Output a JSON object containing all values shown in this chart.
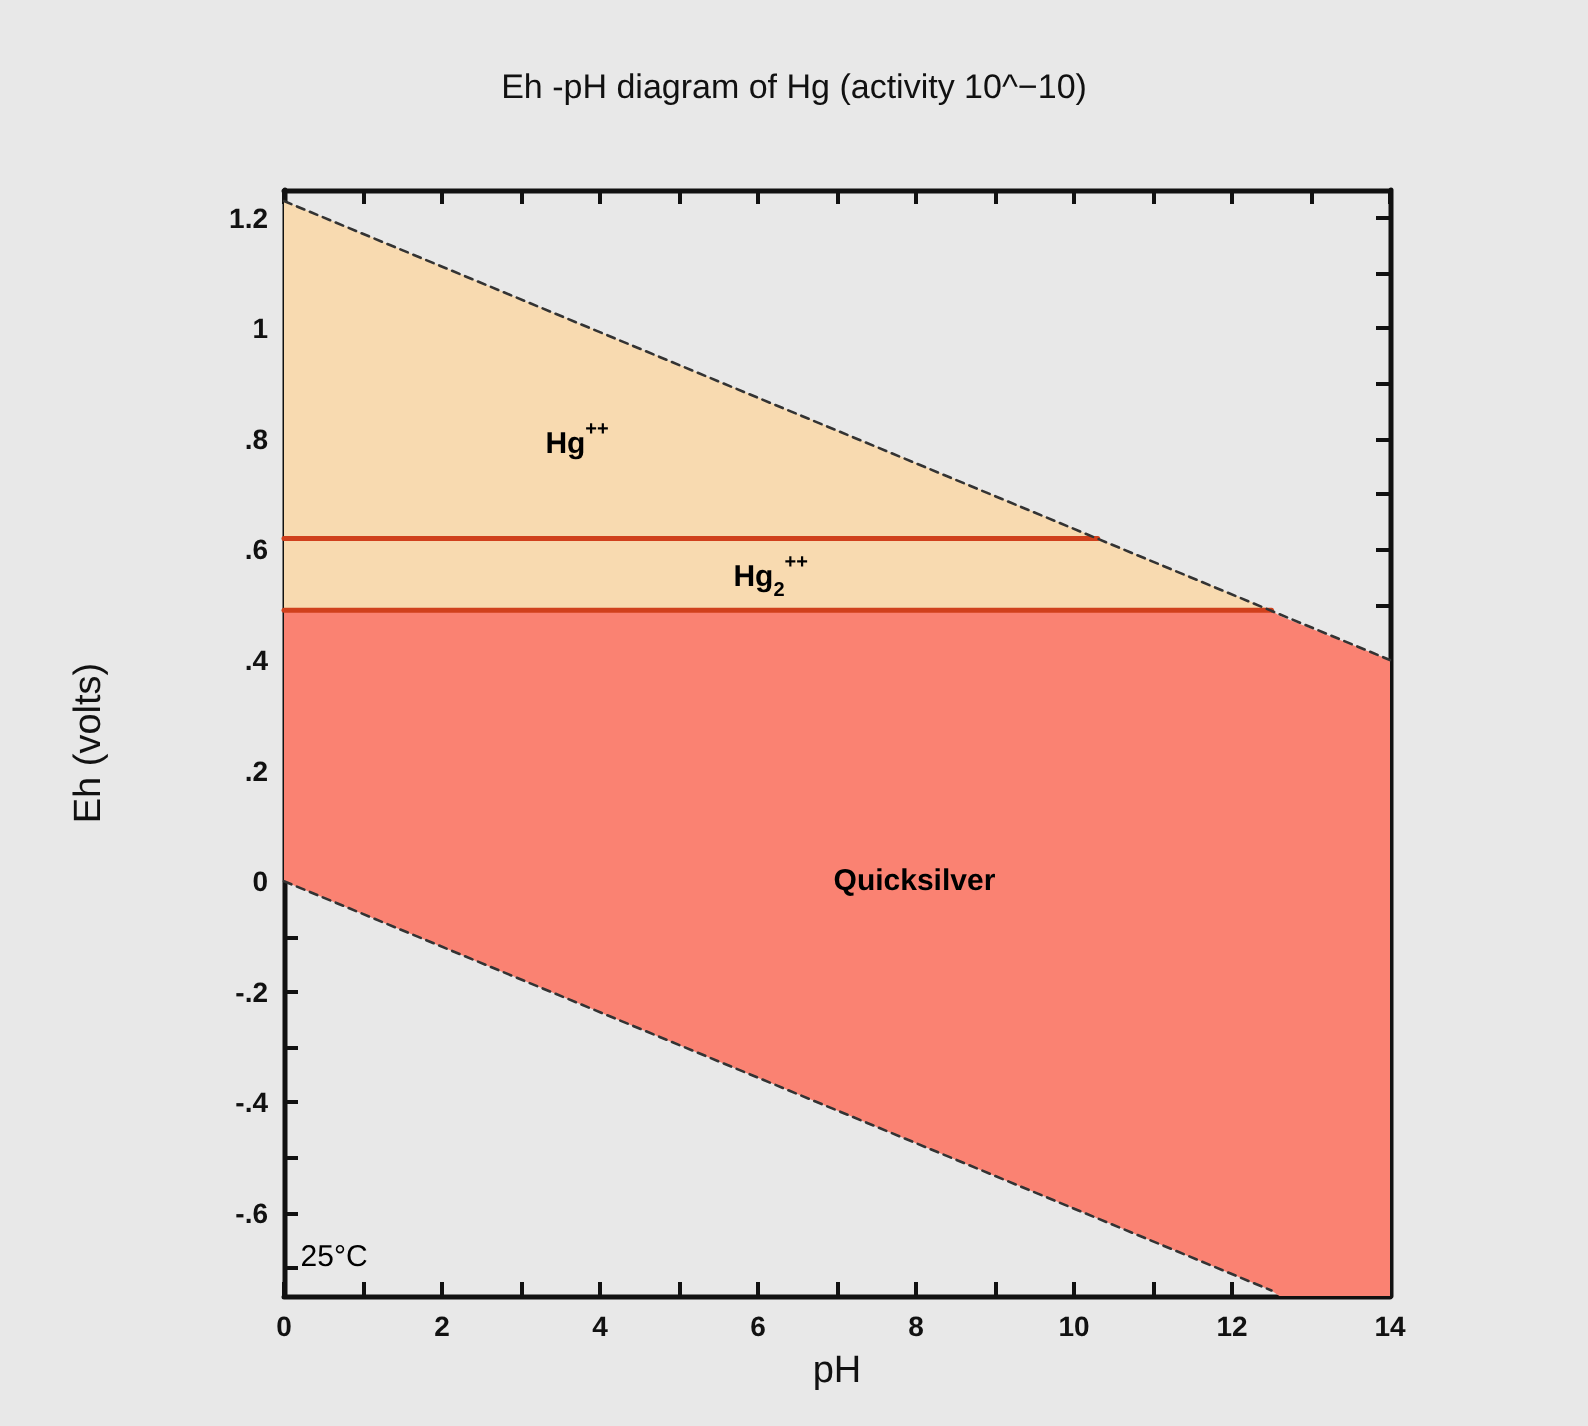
{
  "chart_data": {
    "type": "line",
    "title": "Eh -pH diagram of Hg (activity 10^−10)",
    "xlabel": "pH",
    "ylabel": "Eh (volts)",
    "xlim": [
      0,
      14
    ],
    "ylim": [
      -0.75,
      1.25
    ],
    "xticks": [
      0,
      {
        "value": 1,
        "label": null
      },
      2,
      {
        "value": 3,
        "label": null
      },
      4,
      {
        "value": 5,
        "label": null
      },
      6,
      {
        "value": 7,
        "label": null
      },
      8,
      {
        "value": 9,
        "label": null
      },
      10,
      {
        "value": 11,
        "label": null
      },
      12,
      {
        "value": 13,
        "label": null
      },
      14
    ],
    "yticks": [
      {
        "value": -0.7,
        "label": null
      },
      {
        "value": -0.6,
        "label": "-.6"
      },
      {
        "value": -0.5,
        "label": null
      },
      {
        "value": -0.4,
        "label": "-.4"
      },
      {
        "value": -0.3,
        "label": null
      },
      {
        "value": -0.2,
        "label": "-.2"
      },
      {
        "value": -0.1,
        "label": null
      },
      0,
      {
        "value": 0.1,
        "label": null
      },
      {
        "value": 0.2,
        "label": ".2"
      },
      {
        "value": 0.3,
        "label": null
      },
      {
        "value": 0.4,
        "label": ".4"
      },
      {
        "value": 0.5,
        "label": null
      },
      {
        "value": 0.6,
        "label": ".6"
      },
      {
        "value": 0.7,
        "label": null
      },
      {
        "value": 0.8,
        "label": ".8"
      },
      {
        "value": 0.9,
        "label": null
      },
      1,
      {
        "value": 1.1,
        "label": null
      },
      1.2
    ],
    "series": [
      {
        "color": "#f8dab0",
        "x": [
          0,
          10.3,
          12.5
        ],
        "values": [
          null,
          null,
          null
        ],
        "upper": [
          1.23,
          0.62,
          0.49
        ],
        "lower": [
          0.49,
          0.49,
          0.49
        ]
      },
      {
        "color": "#fa8272",
        "x": [
          0,
          12.5,
          12.6,
          14
        ],
        "values": [
          null,
          null,
          null,
          null
        ],
        "upper": [
          0.49,
          0.49,
          0.48,
          0.4
        ],
        "lower": [
          0,
          -0.74,
          -0.75,
          -0.75
        ]
      },
      {
        "color": "#d0401c",
        "x": [
          0,
          10.3
        ],
        "values": [
          0.62,
          0.62
        ]
      },
      {
        "color": "#d0401c",
        "x": [
          0,
          12.5
        ],
        "values": [
          0.49,
          0.49
        ]
      },
      {
        "color": "#333333",
        "line_style": "dashed",
        "x": [
          0,
          14
        ],
        "values": [
          1.23,
          0.4
        ]
      },
      {
        "color": "#333333",
        "line_style": "dashed",
        "x": [
          0,
          12.5
        ],
        "values": [
          0,
          -0.74
        ]
      }
    ],
    "annotations": [
      "Hg$^{++}$",
      "Hg$_{2}$$^{++}$",
      "Quicksilver",
      "25°C"
    ]
  }
}
